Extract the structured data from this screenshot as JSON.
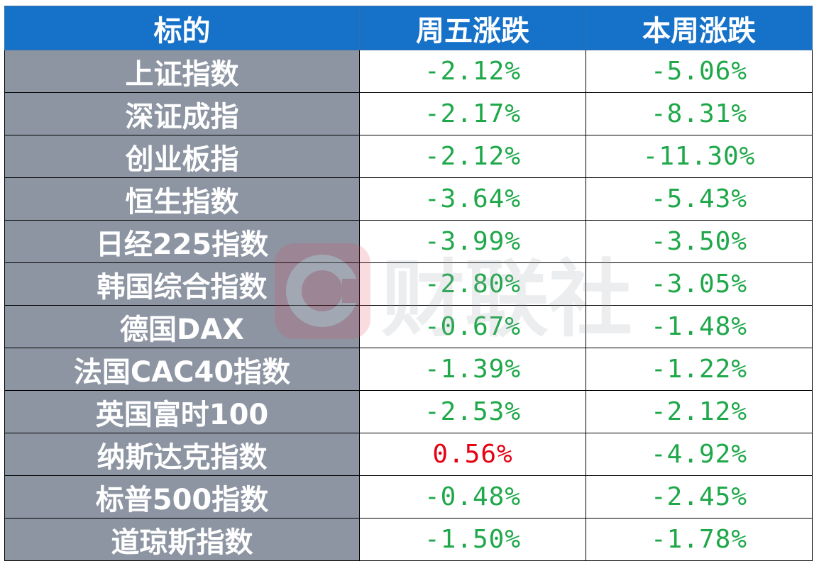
{
  "table": {
    "headers": [
      "标的",
      "周五涨跌",
      "本周涨跌"
    ],
    "rows": [
      {
        "name": "上证指数",
        "fri": "-2.12%",
        "week": "-5.06%",
        "fri_dir": "down",
        "week_dir": "down"
      },
      {
        "name": "深证成指",
        "fri": "-2.17%",
        "week": "-8.31%",
        "fri_dir": "down",
        "week_dir": "down"
      },
      {
        "name": "创业板指",
        "fri": "-2.12%",
        "week": "-11.30%",
        "fri_dir": "down",
        "week_dir": "down"
      },
      {
        "name": "恒生指数",
        "fri": "-3.64%",
        "week": "-5.43%",
        "fri_dir": "down",
        "week_dir": "down"
      },
      {
        "name": "日经225指数",
        "fri": "-3.99%",
        "week": "-3.50%",
        "fri_dir": "down",
        "week_dir": "down"
      },
      {
        "name": "韩国综合指数",
        "fri": "-2.80%",
        "week": "-3.05%",
        "fri_dir": "down",
        "week_dir": "down"
      },
      {
        "name": "德国DAX",
        "fri": "-0.67%",
        "week": "-1.48%",
        "fri_dir": "down",
        "week_dir": "down"
      },
      {
        "name": "法国CAC40指数",
        "fri": "-1.39%",
        "week": "-1.22%",
        "fri_dir": "down",
        "week_dir": "down"
      },
      {
        "name": "英国富时100",
        "fri": "-2.53%",
        "week": "-2.12%",
        "fri_dir": "down",
        "week_dir": "down"
      },
      {
        "name": "纳斯达克指数",
        "fri": "0.56%",
        "week": "-4.92%",
        "fri_dir": "up",
        "week_dir": "down"
      },
      {
        "name": "标普500指数",
        "fri": "-0.48%",
        "week": "-2.45%",
        "fri_dir": "down",
        "week_dir": "down"
      },
      {
        "name": "道琼斯指数",
        "fri": "-1.50%",
        "week": "-1.78%",
        "fri_dir": "down",
        "week_dir": "down"
      }
    ]
  },
  "watermark": {
    "text": "财联社",
    "icon": "cls-logo-c-icon"
  },
  "colors": {
    "header_bg": "#1672c9",
    "name_bg": "#8d95a3",
    "down": "#1fa84a",
    "up": "#e60012"
  }
}
